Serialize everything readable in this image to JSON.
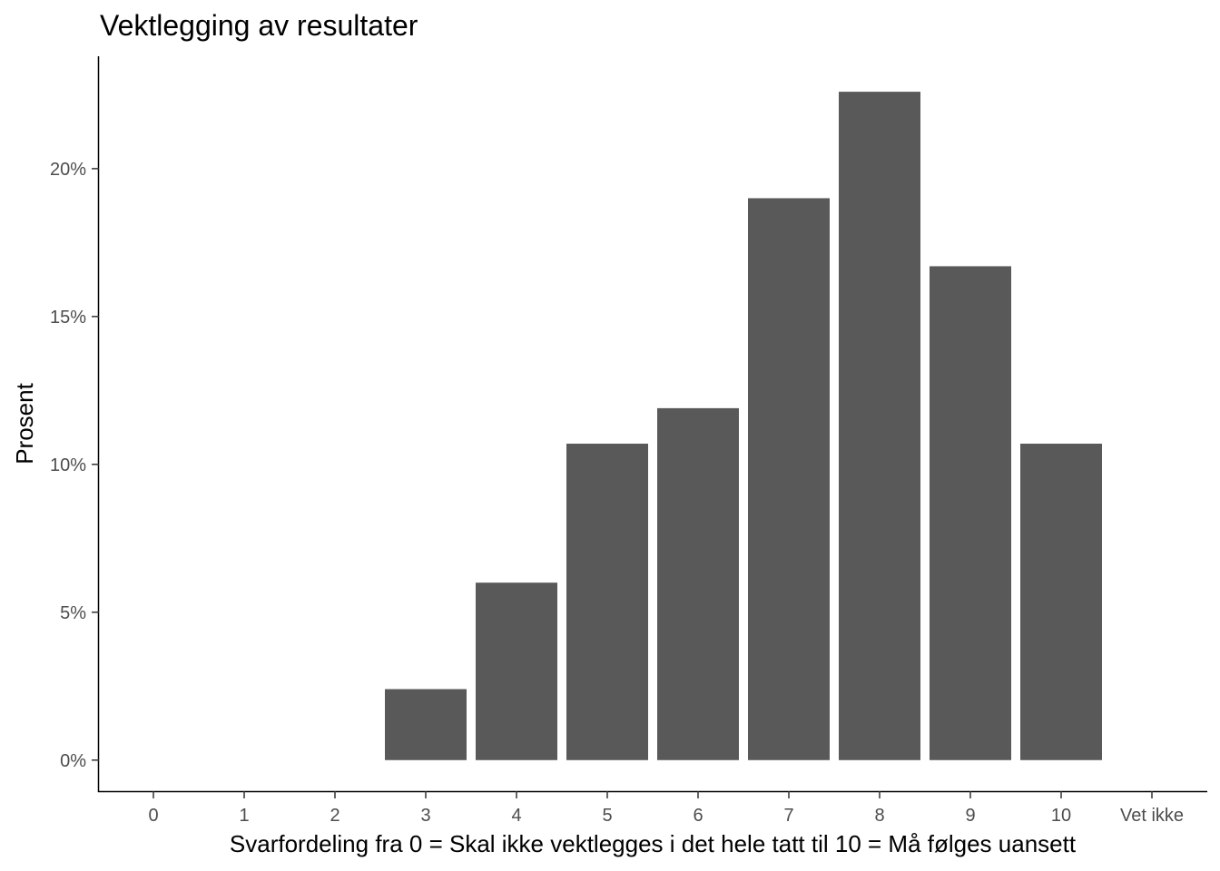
{
  "chart_data": {
    "type": "bar",
    "title": "Vektlegging av resultater",
    "xlabel": "Svarfordeling fra 0 = Skal ikke vektlegges i det hele tatt til 10 = Må følges uansett",
    "ylabel": "Prosent",
    "categories": [
      "0",
      "1",
      "2",
      "3",
      "4",
      "5",
      "6",
      "7",
      "8",
      "9",
      "10",
      "Vet ikke"
    ],
    "values": [
      0,
      0,
      0,
      2.4,
      6.0,
      10.7,
      11.9,
      19.0,
      22.6,
      16.7,
      10.7,
      0
    ],
    "y_ticks": [
      0,
      5,
      10,
      15,
      20
    ],
    "y_tick_labels": [
      "0%",
      "5%",
      "10%",
      "15%",
      "20%"
    ],
    "ylim": [
      -1.05,
      23.8
    ],
    "grid": false,
    "legend": "none",
    "bar_color": "#595959"
  }
}
